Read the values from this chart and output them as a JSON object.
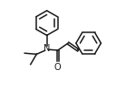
{
  "bg_color": "#ffffff",
  "line_color": "#1a1a1a",
  "line_width": 1.1,
  "figsize": [
    1.39,
    0.98
  ],
  "dpi": 100,
  "N_label": "N",
  "O_label": "O",
  "font_size": 7.0
}
